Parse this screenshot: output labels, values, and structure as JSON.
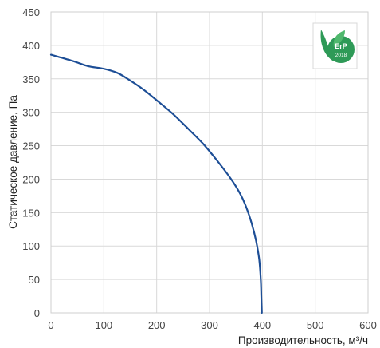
{
  "chart_data": {
    "type": "line",
    "xlabel": "Производительность, м³/ч",
    "ylabel": "Статическое давление, Па",
    "xlim": [
      0,
      600
    ],
    "ylim": [
      0,
      450
    ],
    "xticks": [
      0,
      100,
      200,
      300,
      400,
      500,
      600
    ],
    "yticks": [
      0,
      50,
      100,
      150,
      200,
      250,
      300,
      350,
      400,
      450
    ],
    "grid": true,
    "series": [
      {
        "color": "#1d4e96",
        "points": [
          [
            0,
            386
          ],
          [
            40,
            377
          ],
          [
            70,
            369
          ],
          [
            100,
            365
          ],
          [
            125,
            359
          ],
          [
            145,
            350
          ],
          [
            175,
            334
          ],
          [
            200,
            318
          ],
          [
            230,
            298
          ],
          [
            260,
            275
          ],
          [
            290,
            251
          ],
          [
            315,
            227
          ],
          [
            340,
            201
          ],
          [
            358,
            178
          ],
          [
            370,
            157
          ],
          [
            380,
            133
          ],
          [
            388,
            108
          ],
          [
            394,
            80
          ],
          [
            397,
            50
          ],
          [
            398,
            25
          ],
          [
            399,
            0
          ]
        ]
      }
    ]
  },
  "badge": {
    "text": "ErP",
    "year": "2018",
    "color": "#2e9a57"
  }
}
